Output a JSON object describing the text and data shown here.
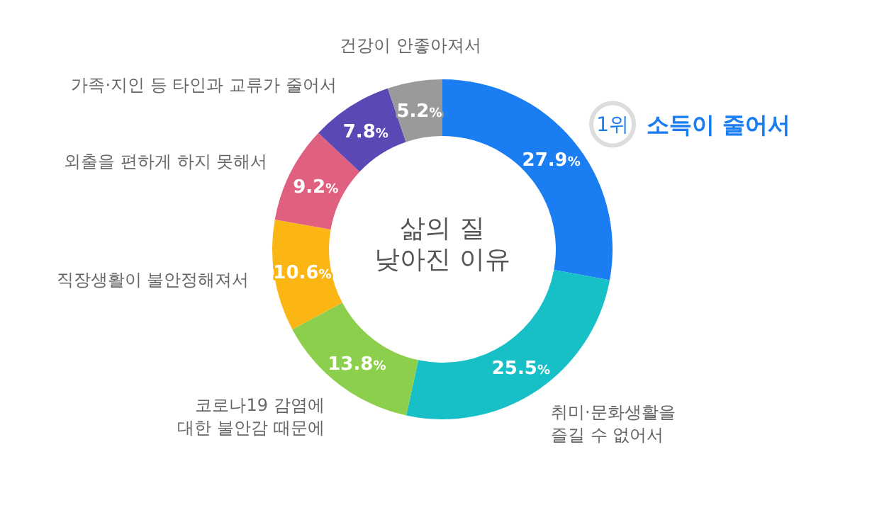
{
  "chart_data": {
    "type": "donut",
    "title": "삶의 질 낮아진 이유",
    "categories": [
      "소득이 줄어서",
      "취미·문화생활을 즐길 수 없어서",
      "코로나19 감염에 대한 불안감 때문에",
      "직장생활이 불안정해져서",
      "외출을 편하게 하지 못해서",
      "가족·지인 등 타인과 교류가 줄어서",
      "건강이 안좋아져서"
    ],
    "values": [
      27.9,
      25.5,
      13.8,
      10.6,
      9.2,
      7.8,
      5.2
    ],
    "colors": [
      "#1a7ef2",
      "#17bfc7",
      "#8ccf4c",
      "#fbb614",
      "#e0607f",
      "#5a48b5",
      "#9a9a9a"
    ],
    "value_labels": [
      "27.9%",
      "25.5%",
      "13.8%",
      "10.6%",
      "9.2%",
      "7.8%",
      "5.2%"
    ],
    "annotations": [
      "1위"
    ]
  }
}
